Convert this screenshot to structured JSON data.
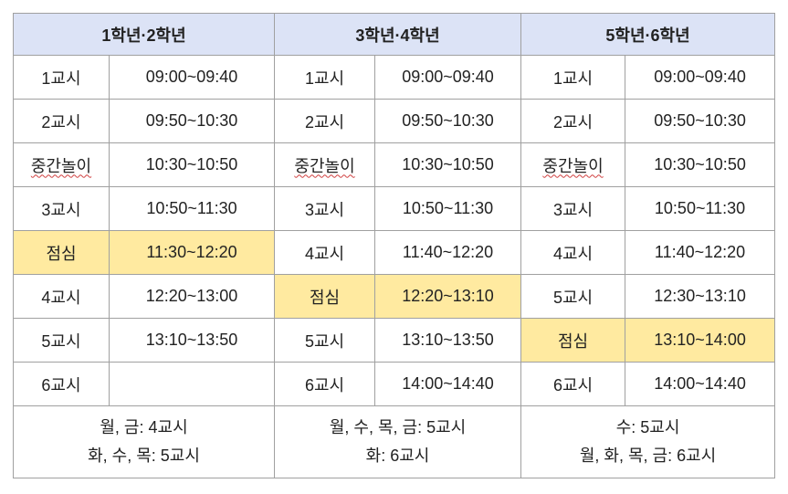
{
  "header": [
    "1학년·2학년",
    "3학년·4학년",
    "5학년·6학년"
  ],
  "rows": [
    [
      "1교시",
      "09:00~09:40",
      "1교시",
      "09:00~09:40",
      "1교시",
      "09:00~09:40"
    ],
    [
      "2교시",
      "09:50~10:30",
      "2교시",
      "09:50~10:30",
      "2교시",
      "09:50~10:30"
    ],
    [
      "중간놀이",
      "10:30~10:50",
      "중간놀이",
      "10:30~10:50",
      "중간놀이",
      "10:30~10:50"
    ],
    [
      "3교시",
      "10:50~11:30",
      "3교시",
      "10:50~11:30",
      "3교시",
      "10:50~11:30"
    ],
    [
      "점심",
      "11:30~12:20",
      "4교시",
      "11:40~12:20",
      "4교시",
      "11:40~12:20"
    ],
    [
      "4교시",
      "12:20~13:00",
      "점심",
      "12:20~13:10",
      "5교시",
      "12:30~13:10"
    ],
    [
      "5교시",
      "13:10~13:50",
      "5교시",
      "13:10~13:50",
      "점심",
      "13:10~14:00"
    ],
    [
      "6교시",
      null,
      "6교시",
      "14:00~14:40",
      "6교시",
      "14:00~14:40"
    ]
  ],
  "footer": [
    [
      "월, 금: 4교시",
      "화, 수, 목: 5교시"
    ],
    [
      "월, 수, 목, 금: 5교시",
      "화: 6교시"
    ],
    [
      "수: 5교시",
      "월, 화, 목, 금: 6교시"
    ]
  ]
}
